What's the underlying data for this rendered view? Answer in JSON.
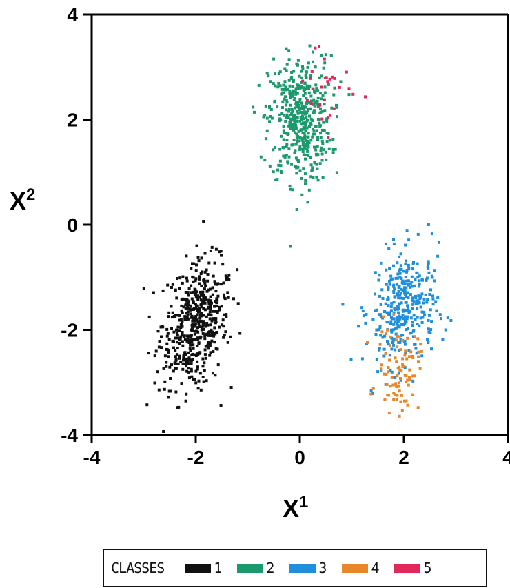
{
  "chart_data": {
    "type": "scatter",
    "xlabel": "X",
    "xlabel_sup": "1",
    "ylabel": "X",
    "ylabel_sup": "2",
    "xlim": [
      -4,
      4
    ],
    "ylim": [
      -4,
      4
    ],
    "xticks": [
      "-4",
      "-2",
      "0",
      "2",
      "4"
    ],
    "yticks": [
      "-4",
      "-2",
      "0",
      "2",
      "4"
    ],
    "grid": false,
    "legend": {
      "placement": "bottom",
      "title": "CLASSES"
    },
    "series": [
      {
        "name": "1",
        "color": "#111111",
        "center": [
          -2.0,
          -1.9
        ],
        "spread": [
          0.35,
          0.6
        ],
        "count": 520
      },
      {
        "name": "2",
        "color": "#1a9a6c",
        "center": [
          0.0,
          2.0
        ],
        "spread": [
          0.3,
          0.6
        ],
        "count": 480
      },
      {
        "name": "3",
        "color": "#1f8fdc",
        "center": [
          2.0,
          -1.6
        ],
        "spread": [
          0.35,
          0.55
        ],
        "count": 360
      },
      {
        "name": "4",
        "color": "#e8862a",
        "center": [
          1.9,
          -2.75
        ],
        "spread": [
          0.2,
          0.4
        ],
        "count": 90
      },
      {
        "name": "5",
        "color": "#e0285a",
        "center": [
          0.5,
          2.7
        ],
        "spread": [
          0.35,
          0.45
        ],
        "count": 28
      }
    ]
  }
}
